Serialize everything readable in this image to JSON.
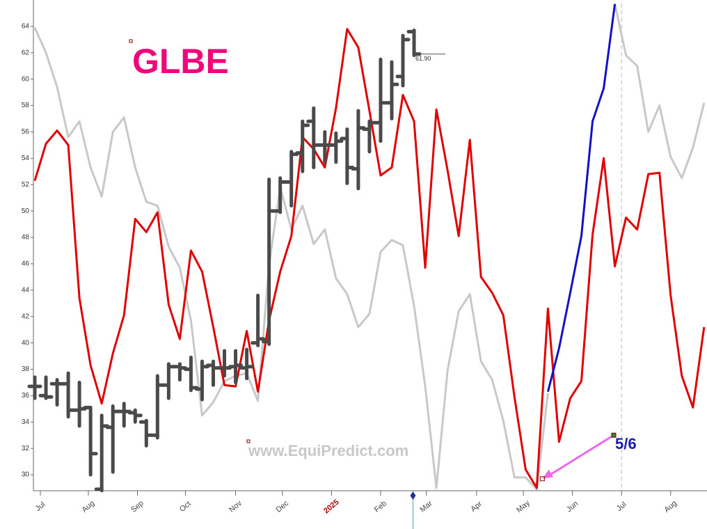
{
  "chart_data": {
    "type": "line",
    "title": "GLBE",
    "watermark": "www.EquiPredict.com",
    "x": [
      0,
      1,
      2,
      3,
      4,
      5,
      6,
      7,
      8,
      9,
      10,
      11,
      12,
      13,
      14,
      15,
      16,
      17,
      18,
      19,
      20,
      21,
      22,
      23,
      24,
      25,
      26,
      27,
      28,
      29,
      30,
      31,
      32,
      33,
      34,
      35,
      36,
      37,
      38,
      39,
      40,
      41,
      42,
      43,
      44,
      45,
      46,
      47,
      48,
      49,
      50,
      51,
      52,
      53,
      54,
      55,
      56,
      57,
      58,
      59,
      60
    ],
    "xlim": [
      0,
      60.26
    ],
    "xticks": [
      {
        "value": 0.5,
        "label": "Jul"
      },
      {
        "value": 4.8,
        "label": "Aug"
      },
      {
        "value": 9.2,
        "label": "Sep"
      },
      {
        "value": 13.5,
        "label": "Oct"
      },
      {
        "value": 18.0,
        "label": "Nov"
      },
      {
        "value": 22.2,
        "label": "Dec"
      },
      {
        "value": 26.6,
        "label": "2025",
        "color": "#b00000"
      },
      {
        "value": 31.0,
        "label": "Feb"
      },
      {
        "value": 35.1,
        "label": "Mar"
      },
      {
        "value": 39.6,
        "label": "Apr"
      },
      {
        "value": 43.8,
        "label": "May"
      },
      {
        "value": 48.2,
        "label": "Jun"
      },
      {
        "value": 52.6,
        "label": "Jul"
      },
      {
        "value": 57.0,
        "label": "Aug"
      }
    ],
    "ylim": [
      28.79,
      66.0
    ],
    "yticks": [
      30,
      32,
      34,
      36,
      38,
      40,
      42,
      44,
      46,
      48,
      50,
      52,
      54,
      56,
      58,
      60,
      62,
      64
    ],
    "series": [
      {
        "color": "#c8c8c8",
        "values": [
          63.9,
          62.0,
          59.4,
          55.6,
          56.8,
          53.3,
          51.1,
          56.0,
          57.1,
          53.3,
          50.7,
          50.4,
          47.3,
          45.7,
          41.7,
          34.5,
          35.5,
          37.1,
          37.5,
          37.7,
          35.6,
          45.9,
          51.8,
          48.6,
          50.4,
          47.5,
          48.6,
          44.9,
          43.7,
          41.2,
          42.2,
          46.9,
          47.8,
          47.4,
          42.8,
          36.7,
          29.0,
          37.9,
          42.4,
          43.7,
          38.6,
          37.2,
          34.1,
          29.8,
          29.8,
          28.9,
          36.2,
          null,
          null,
          null,
          null,
          null,
          65.7,
          61.8,
          61.0,
          56.0,
          58.0,
          54.1,
          52.5,
          54.8,
          58.2
        ]
      },
      {
        "color": "#e00000",
        "values": [
          52.3,
          55.1,
          56.1,
          55.0,
          43.4,
          38.3,
          35.4,
          39.2,
          42.1,
          49.4,
          48.4,
          49.9,
          42.9,
          40.3,
          47.0,
          45.4,
          41.2,
          36.8,
          36.7,
          40.9,
          36.3,
          41.7,
          45.4,
          48.1,
          55.6,
          54.7,
          53.3,
          57.8,
          63.8,
          62.4,
          57.6,
          52.7,
          53.3,
          58.8,
          56.8,
          45.7,
          57.7,
          53.1,
          48.1,
          55.4,
          45.0,
          43.8,
          42.1,
          35.9,
          30.4,
          29.0,
          42.6,
          32.5,
          35.8,
          37.1,
          48.2,
          54.0,
          45.8,
          49.5,
          48.6,
          52.8,
          52.9,
          43.6,
          37.5,
          35.1,
          41.2
        ]
      },
      {
        "color": "#1010c8",
        "values": [
          null,
          null,
          null,
          null,
          null,
          null,
          null,
          null,
          null,
          null,
          null,
          null,
          null,
          null,
          null,
          null,
          null,
          null,
          null,
          null,
          null,
          null,
          null,
          null,
          null,
          null,
          null,
          null,
          null,
          null,
          null,
          null,
          null,
          null,
          null,
          null,
          null,
          null,
          null,
          null,
          null,
          null,
          null,
          null,
          null,
          null,
          36.3,
          39.6,
          43.8,
          48.1,
          56.8,
          59.3,
          65.7,
          null,
          null,
          null,
          null,
          null,
          null,
          null,
          null
        ]
      }
    ],
    "ohlc": {
      "color": "#4a4a4a",
      "x": [
        0,
        1,
        2,
        3,
        4,
        5,
        6,
        7,
        8,
        9,
        10,
        11,
        12,
        13,
        14,
        15,
        16,
        17,
        18,
        19,
        20,
        21,
        22,
        23,
        24,
        25,
        26,
        27,
        28,
        29,
        30,
        31,
        32,
        33,
        34
      ],
      "open": [
        36.7,
        36.0,
        36.9,
        36.9,
        34.9,
        35.1,
        28.9,
        33.6,
        34.8,
        34.7,
        34.0,
        33.0,
        36.8,
        38.2,
        38.0,
        36.5,
        38.3,
        38.1,
        38.2,
        38.1,
        40.0,
        40.1,
        50.0,
        52.2,
        54.4,
        56.8,
        55.0,
        55.0,
        55.5,
        53.2,
        56.2,
        56.7,
        58.2,
        60.2,
        63.6
      ],
      "high": [
        37.4,
        37.4,
        37.2,
        37.7,
        37.0,
        35.1,
        34.5,
        35.2,
        35.4,
        34.9,
        34.1,
        37.5,
        38.4,
        38.4,
        38.9,
        38.6,
        38.6,
        39.4,
        39.4,
        39.5,
        43.6,
        52.4,
        52.5,
        54.5,
        56.8,
        57.8,
        56.0,
        55.9,
        56.2,
        57.6,
        56.8,
        61.5,
        61.3,
        63.3,
        63.7
      ],
      "low": [
        35.8,
        35.8,
        35.3,
        34.4,
        33.7,
        30.0,
        28.8,
        30.2,
        33.7,
        34.0,
        32.2,
        32.8,
        35.8,
        37.2,
        36.4,
        35.7,
        36.8,
        37.5,
        37.0,
        37.3,
        39.8,
        39.9,
        49.9,
        50.4,
        53.0,
        53.3,
        53.7,
        53.7,
        52.1,
        51.7,
        54.5,
        55.3,
        57.0,
        59.5,
        61.8
      ],
      "close": [
        36.7,
        35.9,
        36.9,
        34.9,
        35.0,
        31.6,
        33.7,
        34.8,
        34.8,
        34.5,
        33.0,
        36.8,
        38.2,
        38.1,
        36.6,
        38.2,
        38.1,
        38.1,
        38.3,
        38.2,
        40.3,
        50.0,
        52.2,
        54.3,
        56.5,
        55.0,
        55.0,
        55.3,
        53.3,
        56.3,
        56.7,
        58.2,
        59.6,
        63.0,
        61.9
      ]
    },
    "last_price": {
      "value": 61.9,
      "label": "61.90"
    },
    "today_x": 33.9,
    "vline_x": 52.6,
    "annotation": {
      "text": "5/6",
      "color": "#1a1ab4",
      "arrow_color": "#ee66ee",
      "from": [
        51.9,
        33.0
      ],
      "to": [
        45.5,
        29.7
      ]
    }
  }
}
